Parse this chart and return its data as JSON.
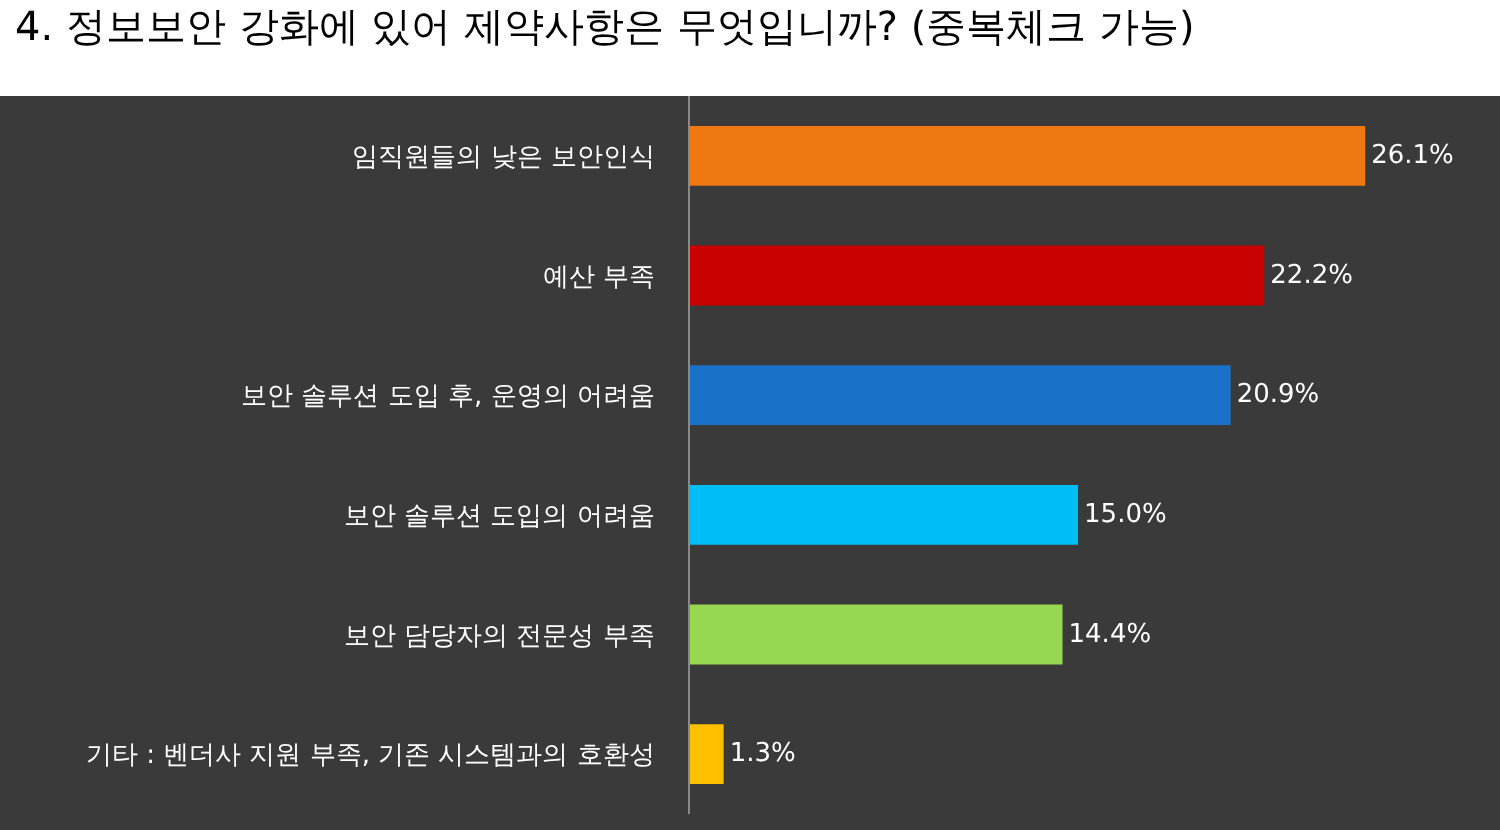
{
  "chart_data": {
    "type": "bar",
    "orientation": "horizontal",
    "title": "4. 정보보안 강화에 있어 제약사항은 무엇입니까? (중복체크 가능)",
    "categories": [
      "임직원들의 낮은 보안인식",
      "예산 부족",
      "보안 솔루션 도입 후, 운영의 어려움",
      "보안 솔루션 도입의 어려움",
      "보안 담당자의 전문성 부족",
      "기타 : 벤더사 지원 부족, 기존 시스템과의 호환성"
    ],
    "values": [
      26.1,
      22.2,
      20.9,
      15.0,
      14.4,
      1.3
    ],
    "value_labels": [
      "26.1%",
      "22.2%",
      "20.9%",
      "15.0%",
      "14.4%",
      "1.3%"
    ],
    "colors": [
      "#f07810",
      "#c80000",
      "#1a72c8",
      "#00bef5",
      "#96d850",
      "#ffc000"
    ],
    "grid": false,
    "legend": false
  }
}
